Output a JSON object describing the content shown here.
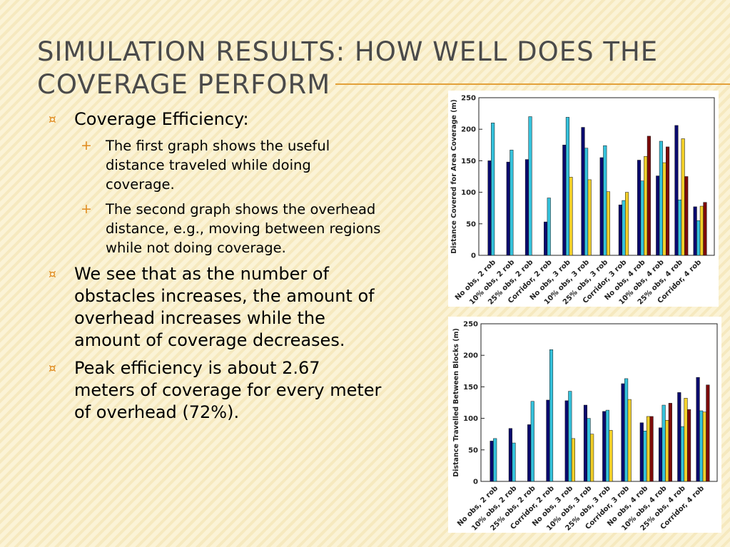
{
  "slide": {
    "title_line1": "Simulation Results: How Well does the",
    "title_line2": "Coverage Perform",
    "bullets": [
      {
        "text": "Coverage Efficiency:"
      },
      {
        "text": "The first graph shows the useful distance traveled while doing coverage."
      },
      {
        "text": "The second graph shows the overhead distance, e.g., moving between regions while not doing coverage."
      },
      {
        "text": "We see that as the number of obstacles increases, the amount of overhead increases while the amount of coverage decreases."
      },
      {
        "text": "Peak efficiency is about 2.67 meters of coverage for every meter of overhead (72%)."
      }
    ],
    "bullet_symbol_l1": "¤",
    "bullet_symbol_l2": "+",
    "accent_color": "#e3a13a"
  },
  "chart_data": [
    {
      "type": "bar",
      "ylabel": "Distance Covered for Area Coverage (m)",
      "ylim": [
        0,
        250
      ],
      "yticks": [
        0,
        50,
        100,
        150,
        200,
        250
      ],
      "grid": false,
      "categories": [
        "No obs, 2 rob",
        "10% obs, 2 rob",
        "25% obs, 2 rob",
        "Corridor, 2 rob",
        "No obs, 3 rob",
        "10% obs, 3 rob",
        "25% obs, 3 rob",
        "Corridor, 3 rob",
        "No obs, 4 rob",
        "10% obs, 4 rob",
        "25% obs, 4 rob",
        "Corridor, 4 rob"
      ],
      "series": [
        {
          "color": "#0a0a6e",
          "values": [
            150,
            148,
            152,
            53,
            175,
            203,
            155,
            80,
            151,
            126,
            206,
            77
          ]
        },
        {
          "color": "#35c2dc",
          "values": [
            210,
            167,
            220,
            91,
            219,
            170,
            174,
            87,
            118,
            181,
            88,
            55
          ]
        },
        {
          "color": "#f2cf2a",
          "values": [
            null,
            null,
            null,
            null,
            124,
            120,
            101,
            100,
            157,
            147,
            185,
            78
          ]
        },
        {
          "color": "#7d0a0a",
          "values": [
            null,
            null,
            null,
            null,
            null,
            null,
            null,
            null,
            189,
            172,
            125,
            84
          ]
        }
      ]
    },
    {
      "type": "bar",
      "ylabel": "Distance Travelled Between Blocks (m)",
      "ylim": [
        0,
        250
      ],
      "yticks": [
        0,
        50,
        100,
        150,
        200,
        250
      ],
      "grid": false,
      "categories": [
        "No obs, 2 rob",
        "10% obs, 2 rob",
        "25% obs, 2 rob",
        "Corridor, 2 rob",
        "No obs, 3 rob",
        "10% obs, 3 rob",
        "25% obs, 3 rob",
        "Corridor, 3 rob",
        "No obs, 4 rob",
        "10% obs, 4 rob",
        "25% obs, 4 rob",
        "Corridor, 4 rob"
      ],
      "series": [
        {
          "color": "#0a0a6e",
          "values": [
            64,
            84,
            90,
            129,
            128,
            121,
            111,
            155,
            93,
            85,
            141,
            165
          ]
        },
        {
          "color": "#35c2dc",
          "values": [
            68,
            61,
            127,
            209,
            143,
            100,
            113,
            163,
            80,
            121,
            87,
            112
          ]
        },
        {
          "color": "#f2cf2a",
          "values": [
            null,
            null,
            null,
            null,
            68,
            75,
            81,
            130,
            103,
            97,
            132,
            110
          ]
        },
        {
          "color": "#7d0a0a",
          "values": [
            null,
            null,
            null,
            null,
            null,
            null,
            null,
            null,
            103,
            124,
            114,
            153
          ]
        }
      ]
    }
  ]
}
